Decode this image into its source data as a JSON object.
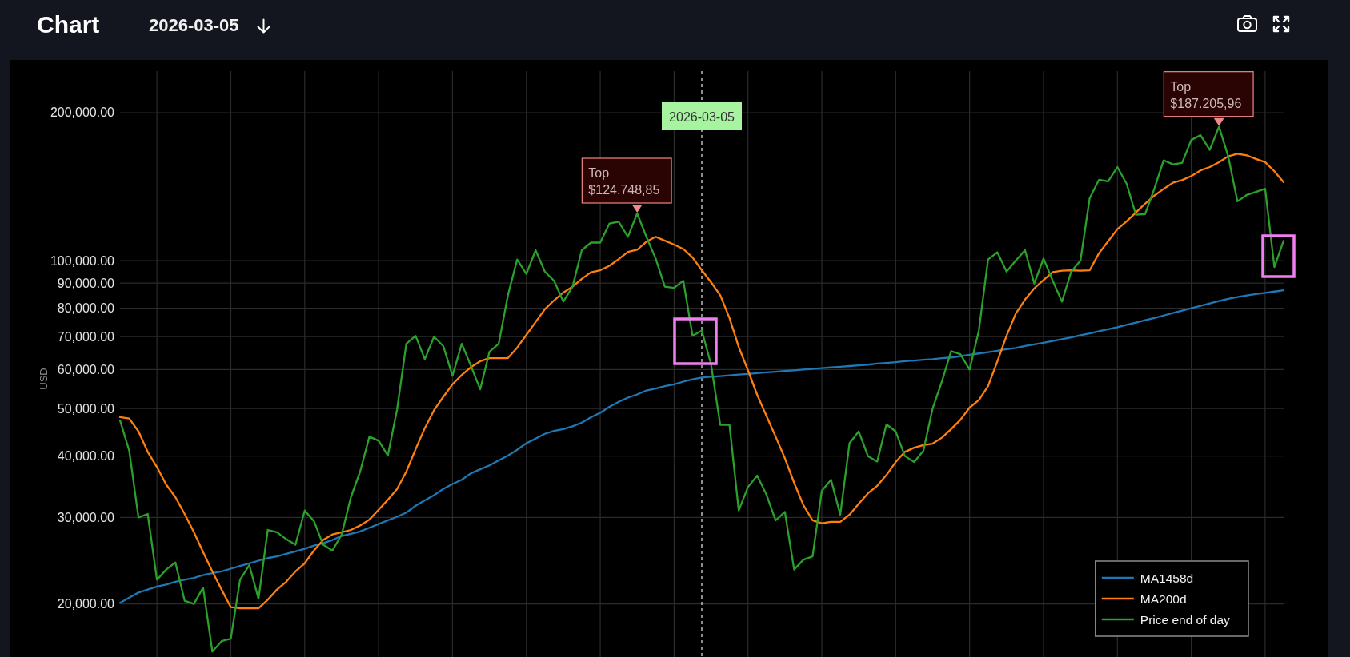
{
  "chart_data": {
    "type": "line",
    "title": "Chart",
    "subtitle": "2026-03-05",
    "ylabel": "USD",
    "categories": [
      null,
      null,
      null,
      null,
      null,
      null,
      null,
      null,
      null,
      null,
      null,
      null,
      null,
      null,
      null,
      null,
      null,
      null,
      null,
      null,
      null,
      null,
      null,
      null,
      null,
      null,
      null,
      null,
      null,
      null,
      null,
      null,
      null,
      null,
      null,
      null,
      null,
      null,
      null,
      null,
      null,
      null,
      null,
      null,
      null,
      null,
      null,
      null,
      null,
      null,
      null,
      null,
      null,
      null,
      null,
      null,
      null,
      null,
      null,
      null,
      null,
      null,
      null,
      null,
      null,
      null,
      null,
      null,
      null,
      null,
      null,
      null,
      null,
      null,
      null,
      null,
      null,
      null,
      null,
      null,
      null,
      null,
      null,
      null,
      null,
      null,
      null,
      null,
      null,
      null,
      null,
      null,
      null,
      null,
      null,
      null,
      null,
      null,
      null,
      null,
      null,
      null,
      null,
      null,
      null,
      null,
      null,
      null,
      null,
      null,
      null,
      null,
      null,
      null,
      null,
      null,
      null,
      null,
      null,
      null,
      null,
      null,
      null,
      null,
      null,
      null,
      null
    ],
    "series": [
      {
        "name": "MA1458d",
        "color": "#1f77b4",
        "values": [
          20100,
          20600,
          21100,
          21400,
          21700,
          21900,
          22200,
          22400,
          22600,
          22900,
          23100,
          23300,
          23600,
          23900,
          24200,
          24500,
          24800,
          25000,
          25300,
          25600,
          25900,
          26300,
          26600,
          27000,
          27500,
          27800,
          28100,
          28600,
          29100,
          29600,
          30100,
          30700,
          31700,
          32500,
          33300,
          34300,
          35100,
          35800,
          36900,
          37600,
          38300,
          39200,
          40100,
          41200,
          42500,
          43400,
          44400,
          45000,
          45400,
          46000,
          46800,
          48000,
          49000,
          50400,
          51600,
          52600,
          53400,
          54400,
          54900,
          55500,
          56000,
          56700,
          57300,
          57800,
          58000,
          58200,
          58400,
          58600,
          58800,
          59000,
          59200,
          59400,
          59600,
          59800,
          60000,
          60200,
          60400,
          60600,
          60800,
          61000,
          61200,
          61400,
          61700,
          61900,
          62100,
          62400,
          62600,
          62800,
          63000,
          63300,
          63500,
          63900,
          64300,
          64700,
          65100,
          65500,
          66000,
          66400,
          67000,
          67500,
          68000,
          68600,
          69200,
          69800,
          70500,
          71100,
          71800,
          72500,
          73200,
          74000,
          74800,
          75600,
          76400,
          77300,
          78200,
          79100,
          80000,
          80900,
          81800,
          82700,
          83600,
          84300,
          84900,
          85500,
          86000,
          86500,
          87000
        ]
      },
      {
        "name": "MA200d",
        "color": "#ff7f0e",
        "values": [
          48000,
          47700,
          44900,
          40800,
          38000,
          35000,
          33000,
          30500,
          28000,
          25500,
          23300,
          21400,
          19700,
          19600,
          19600,
          19600,
          20400,
          21400,
          22200,
          23300,
          24200,
          25700,
          27000,
          27700,
          28000,
          28300,
          28900,
          29700,
          31100,
          32600,
          34300,
          37200,
          41300,
          45600,
          49600,
          52800,
          56000,
          58500,
          60700,
          62400,
          63300,
          63300,
          63300,
          66500,
          70600,
          75000,
          79600,
          83000,
          86100,
          88500,
          91800,
          94700,
          95600,
          97600,
          100700,
          104200,
          105200,
          109300,
          111800,
          109800,
          107800,
          105600,
          101500,
          95600,
          90400,
          85000,
          76400,
          66700,
          59800,
          53300,
          48300,
          43800,
          39600,
          35300,
          31800,
          29600,
          29200,
          29400,
          29400,
          30400,
          32000,
          33600,
          34800,
          36600,
          38900,
          40800,
          41600,
          42100,
          42400,
          43600,
          45400,
          47400,
          50200,
          52000,
          55500,
          62300,
          70300,
          78000,
          83300,
          87800,
          91300,
          94800,
          95400,
          95600,
          95400,
          95600,
          103500,
          109500,
          115900,
          120200,
          125300,
          130600,
          135600,
          139900,
          144000,
          145800,
          148600,
          152600,
          155000,
          158600,
          163000,
          165000,
          163800,
          161000,
          158600,
          152000,
          144400
        ]
      },
      {
        "name": "Price end of day",
        "color": "#2ca02c",
        "values": [
          47300,
          41000,
          30000,
          30500,
          22400,
          23500,
          24300,
          20300,
          20000,
          21600,
          16000,
          16800,
          17000,
          22400,
          24000,
          20500,
          28300,
          28000,
          27100,
          26400,
          31000,
          29500,
          26400,
          25700,
          27700,
          33000,
          37200,
          43800,
          43000,
          40100,
          49800,
          67700,
          70300,
          63000,
          70000,
          67000,
          58300,
          67700,
          61000,
          54700,
          65200,
          67700,
          85000,
          100500,
          94000,
          105000,
          95000,
          91000,
          82500,
          88500,
          105000,
          108800,
          108800,
          119000,
          120000,
          111800,
          124748.85,
          111800,
          101000,
          88500,
          88000,
          91000,
          70300,
          72000,
          61500,
          46300,
          46300,
          31000,
          34600,
          36500,
          33400,
          29600,
          30800,
          23500,
          24600,
          25000,
          34000,
          35800,
          30400,
          42500,
          44900,
          40000,
          39000,
          46400,
          44900,
          40000,
          38900,
          41000,
          50000,
          56700,
          65400,
          64500,
          60000,
          72000,
          100500,
          104000,
          95000,
          100000,
          105000,
          89800,
          101000,
          91000,
          82500,
          95000,
          100000,
          134000,
          146000,
          145000,
          155000,
          143300,
          124000,
          124400,
          140000,
          160000,
          157000,
          158000,
          176000,
          180000,
          168000,
          187205.96,
          163000,
          132000,
          136000,
          138000,
          140000,
          97000,
          109800
        ]
      }
    ],
    "log": true,
    "ylim": [
      15600,
      243000
    ],
    "yticks": [
      {
        "value": 20000,
        "label": "20,000.00"
      },
      {
        "value": 30000,
        "label": "30,000.00"
      },
      {
        "value": 40000,
        "label": "40,000.00"
      },
      {
        "value": 50000,
        "label": "50,000.00"
      },
      {
        "value": 60000,
        "label": "60,000.00"
      },
      {
        "value": 70000,
        "label": "70,000.00"
      },
      {
        "value": 80000,
        "label": "80,000.00"
      },
      {
        "value": 90000,
        "label": "90,000.00"
      },
      {
        "value": 100000,
        "label": "100,000.00"
      },
      {
        "value": 200000,
        "label": "200,000.00"
      }
    ],
    "grid": true,
    "legend": "bottom right",
    "annotations": [
      "Top\n$124.748,85",
      "2026-03-05",
      "Top\n$187.205,96"
    ]
  }
}
